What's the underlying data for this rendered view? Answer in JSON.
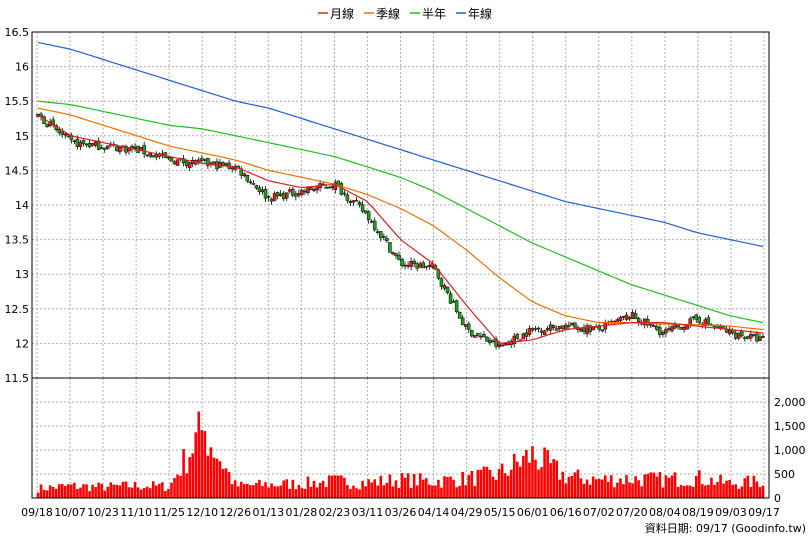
{
  "chart_data": {
    "type": "candlestick",
    "legend": [
      {
        "name": "月線",
        "color": "#e02020"
      },
      {
        "name": "季線",
        "color": "#f07000"
      },
      {
        "name": "半年",
        "color": "#20c020"
      },
      {
        "name": "年線",
        "color": "#2060d0"
      }
    ],
    "colors": {
      "up": "#e02020",
      "down": "#20a020",
      "volume": "#ff0000"
    },
    "price_axis": {
      "min": 11.5,
      "max": 16.5,
      "ticks": [
        "16.5",
        "16",
        "15.5",
        "15",
        "14.5",
        "14",
        "13.5",
        "13",
        "12.5",
        "12",
        "11.5"
      ]
    },
    "volume_axis": {
      "min": 0,
      "max": 2500,
      "ticks": [
        "2,000",
        "1,500",
        "1,000",
        "500",
        "0"
      ]
    },
    "x_labels": [
      "09/18",
      "10/07",
      "10/23",
      "11/10",
      "11/25",
      "12/10",
      "12/26",
      "01/13",
      "01/28",
      "02/23",
      "03/11",
      "03/26",
      "04/14",
      "04/29",
      "05/15",
      "06/01",
      "06/16",
      "07/02",
      "07/20",
      "08/04",
      "08/19",
      "09/03",
      "09/17"
    ],
    "close_anchors": [
      15.3,
      14.9,
      14.85,
      14.8,
      14.65,
      14.6,
      14.55,
      14.1,
      14.2,
      14.3,
      13.85,
      13.15,
      13.1,
      12.2,
      11.95,
      12.2,
      12.25,
      12.2,
      12.4,
      12.15,
      12.35,
      12.15,
      12.05
    ],
    "ma_month": [
      15.3,
      15.0,
      14.9,
      14.8,
      14.7,
      14.6,
      14.55,
      14.35,
      14.25,
      14.3,
      14.05,
      13.5,
      13.15,
      12.55,
      12.0,
      12.05,
      12.2,
      12.25,
      12.3,
      12.3,
      12.25,
      12.2,
      12.15
    ],
    "ma_quarter": [
      15.4,
      15.3,
      15.15,
      15.0,
      14.85,
      14.75,
      14.65,
      14.5,
      14.4,
      14.3,
      14.15,
      13.95,
      13.7,
      13.35,
      12.95,
      12.6,
      12.4,
      12.3,
      12.3,
      12.28,
      12.27,
      12.25,
      12.2
    ],
    "ma_halfyear": [
      15.5,
      15.45,
      15.35,
      15.25,
      15.15,
      15.1,
      15.0,
      14.9,
      14.8,
      14.7,
      14.55,
      14.4,
      14.2,
      13.95,
      13.7,
      13.45,
      13.25,
      13.05,
      12.85,
      12.7,
      12.55,
      12.4,
      12.3
    ],
    "ma_year": [
      16.35,
      16.25,
      16.1,
      15.95,
      15.8,
      15.65,
      15.5,
      15.4,
      15.25,
      15.1,
      14.95,
      14.8,
      14.65,
      14.5,
      14.35,
      14.2,
      14.05,
      13.95,
      13.85,
      13.75,
      13.6,
      13.5,
      13.4
    ],
    "volume_anchors": [
      200,
      250,
      230,
      260,
      240,
      1450,
      250,
      280,
      300,
      350,
      320,
      380,
      350,
      400,
      500,
      900,
      450,
      380,
      400,
      380,
      420,
      300,
      350
    ],
    "source_label": "資料日期: 09/17 (Goodinfo.tw)"
  }
}
